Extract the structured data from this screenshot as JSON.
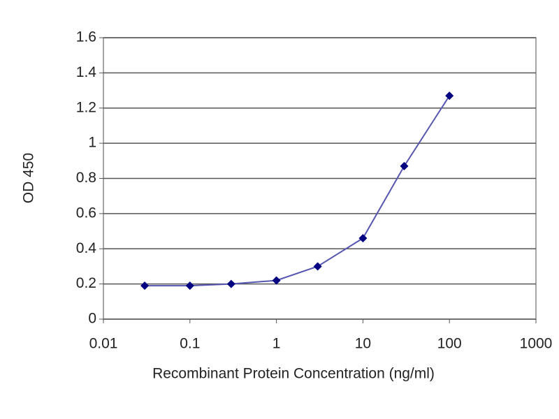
{
  "chart_data": {
    "type": "line",
    "x": [
      0.03,
      0.1,
      0.3,
      1,
      3,
      10,
      30,
      100
    ],
    "values": [
      0.19,
      0.19,
      0.2,
      0.22,
      0.3,
      0.46,
      0.87,
      1.27
    ],
    "color": "#5656b0",
    "marker_color": "#000080",
    "xlabel": "Recombinant Protein Concentration (ng/ml)",
    "ylabel": "OD 450",
    "xscale": "log",
    "xlim": [
      0.01,
      1000
    ],
    "xticks": [
      0.01,
      0.1,
      1,
      10,
      100,
      1000
    ],
    "ylim": [
      0,
      1.6
    ],
    "yticks": [
      0,
      0.2,
      0.4,
      0.6,
      0.8,
      1,
      1.2,
      1.4,
      1.6
    ],
    "grid": true
  }
}
